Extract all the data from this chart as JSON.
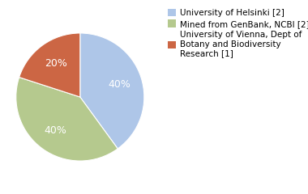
{
  "slices": [
    {
      "label": "University of Helsinki [2]",
      "value": 40,
      "color": "#aec6e8"
    },
    {
      "label": "Mined from GenBank, NCBI [2]",
      "value": 40,
      "color": "#b5c98e"
    },
    {
      "label": "University of Vienna, Dept of\nBotany and Biodiversity\nResearch [1]",
      "value": 20,
      "color": "#cc6644"
    }
  ],
  "background_color": "#ffffff",
  "text_color": "#ffffff",
  "autopct_fontsize": 9,
  "legend_fontsize": 7.5,
  "startangle": 90
}
